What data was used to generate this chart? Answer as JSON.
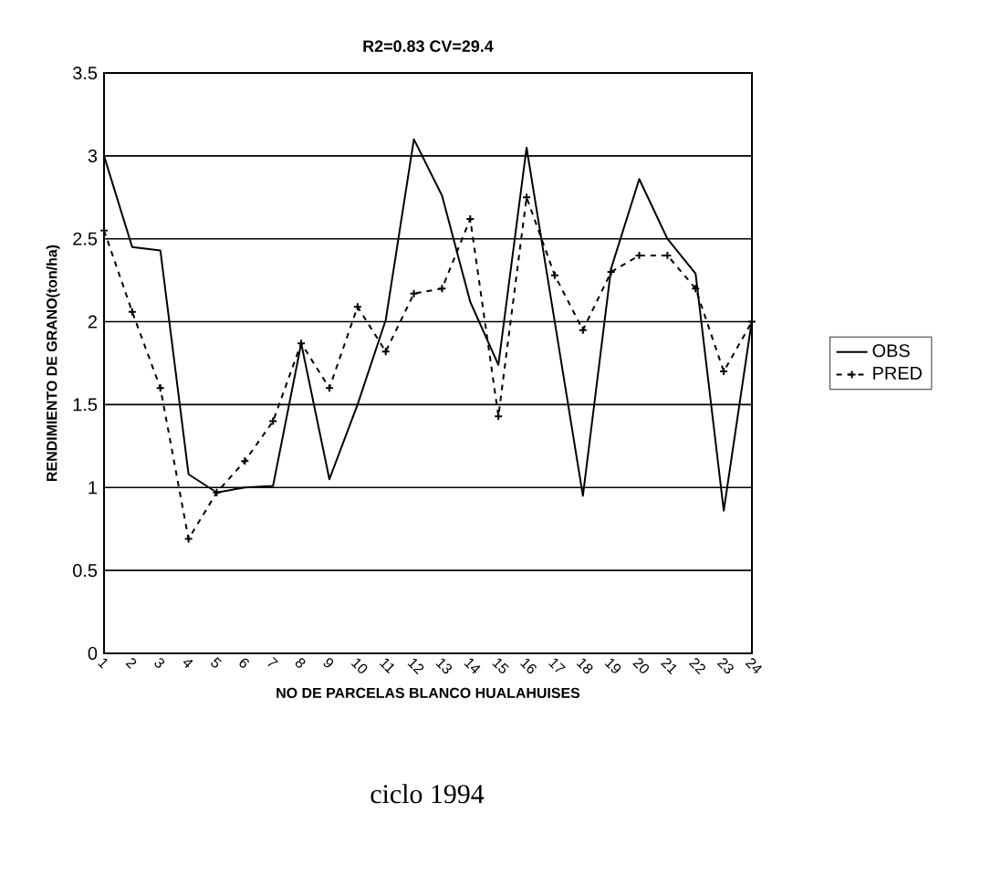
{
  "chart_data": {
    "type": "line",
    "title": "R2=0.83       CV=29.4",
    "xlabel": "NO DE PARCELAS BLANCO HUALAHUISES",
    "ylabel": "RENDIMIENTO DE GRANO(ton/ha)",
    "categories": [
      "1",
      "2",
      "3",
      "4",
      "5",
      "6",
      "7",
      "8",
      "9",
      "10",
      "11",
      "12",
      "13",
      "14",
      "15",
      "16",
      "17",
      "18",
      "19",
      "20",
      "21",
      "22",
      "23",
      "24"
    ],
    "series": [
      {
        "name": "OBS",
        "color": "#000000",
        "marker": "none",
        "line_style": "solid",
        "values": [
          3.0,
          2.45,
          2.43,
          1.08,
          0.97,
          1.0,
          1.01,
          1.87,
          1.05,
          1.5,
          2.01,
          3.1,
          2.76,
          2.12,
          1.74,
          3.05,
          2.0,
          0.95,
          2.32,
          2.86,
          2.5,
          2.29,
          0.86,
          2.01
        ]
      },
      {
        "name": "PRED",
        "color": "#000000",
        "marker": "cross",
        "line_style": "dashed",
        "values": [
          2.55,
          2.06,
          1.6,
          0.69,
          0.97,
          1.16,
          1.4,
          1.87,
          1.6,
          2.09,
          1.82,
          2.17,
          2.2,
          2.62,
          1.43,
          2.75,
          2.28,
          1.95,
          2.3,
          2.4,
          2.4,
          2.2,
          1.7,
          2.0
        ]
      }
    ],
    "ylim": [
      0,
      3.5
    ],
    "yticks": [
      0,
      0.5,
      1,
      1.5,
      2,
      2.5,
      3,
      3.5
    ],
    "grid": "y",
    "legend": "right",
    "annotations": [
      "ciclo 1994"
    ]
  }
}
